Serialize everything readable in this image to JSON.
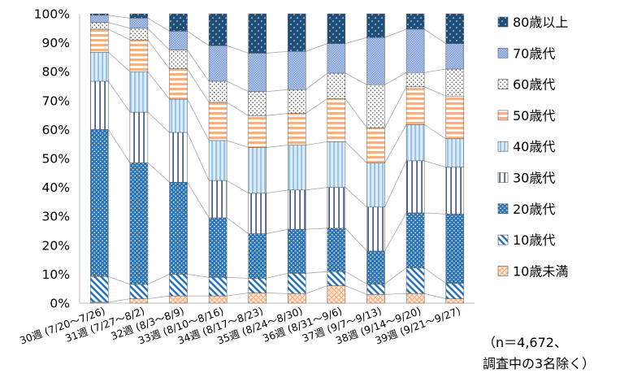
{
  "chart_data": {
    "type": "bar",
    "stacked": true,
    "percent": true,
    "categories": [
      "30週 (7/20～7/26)",
      "31週 (7/27～8/2)",
      "32週 (8/3～8/9)",
      "33週 (8/10～8/16)",
      "34週 (8/17～8/23)",
      "35週 (8/24～8/30)",
      "36週 (8/31～9/6)",
      "37週 (9/7～9/13)",
      "38週 (9/14～9/20)",
      "39週 (9/21～9/27)"
    ],
    "series": [
      {
        "name": "10歳未満",
        "pattern": "checker",
        "color": "#f4b183",
        "values": [
          0.3,
          1.5,
          2.5,
          2.5,
          3.5,
          3.3,
          6.0,
          3.0,
          3.3,
          1.5
        ]
      },
      {
        "name": "10歳代",
        "pattern": "diagonal",
        "color": "#2e75b6",
        "values": [
          8.9,
          5.0,
          7.5,
          6.4,
          5.1,
          7.0,
          4.9,
          3.6,
          8.9,
          5.3
        ]
      },
      {
        "name": "20歳代",
        "pattern": "dots",
        "color": "#2e75b6",
        "values": [
          50.8,
          42.0,
          31.8,
          20.6,
          15.4,
          15.2,
          15.0,
          11.4,
          19.0,
          24.0
        ]
      },
      {
        "name": "30歳代",
        "pattern": "vertical",
        "color": "#1f3864",
        "values": [
          16.7,
          17.5,
          17.2,
          12.9,
          14.0,
          13.6,
          14.1,
          15.2,
          18.0,
          16.2
        ]
      },
      {
        "name": "40歳代",
        "pattern": "vstripes",
        "color": "#9dc3e6",
        "values": [
          10.0,
          14.0,
          11.5,
          13.8,
          15.8,
          15.5,
          15.8,
          15.2,
          12.5,
          9.8
        ]
      },
      {
        "name": "50歳代",
        "pattern": "hstripes",
        "color": "#f4b183",
        "values": [
          8.0,
          11.0,
          10.5,
          13.2,
          11.0,
          11.0,
          14.9,
          12.2,
          13.1,
          14.8
        ]
      },
      {
        "name": "60歳代",
        "pattern": "sparse",
        "color": "#7f7f7f",
        "values": [
          2.3,
          4.0,
          6.5,
          7.3,
          8.3,
          8.2,
          8.8,
          14.9,
          4.9,
          9.3
        ]
      },
      {
        "name": "70歳代",
        "pattern": "fine",
        "color": "#8faadc",
        "values": [
          2.5,
          3.5,
          6.5,
          12.3,
          13.3,
          13.2,
          10.2,
          16.3,
          15.0,
          8.8
        ]
      },
      {
        "name": "80歳以上",
        "pattern": "navy",
        "color": "#1f4e79",
        "values": [
          0.5,
          1.5,
          6.0,
          11.0,
          13.6,
          13.0,
          10.3,
          8.2,
          5.3,
          10.3
        ]
      }
    ],
    "y_ticks": [
      "0%",
      "10%",
      "20%",
      "30%",
      "40%",
      "50%",
      "60%",
      "70%",
      "80%",
      "90%",
      "100%"
    ],
    "ylim": [
      0,
      100
    ],
    "legend_position": "right",
    "connector_lines": true,
    "grid": false
  },
  "note": {
    "line1": "（n＝4,672、",
    "line2": "調査中の3名除く）"
  }
}
